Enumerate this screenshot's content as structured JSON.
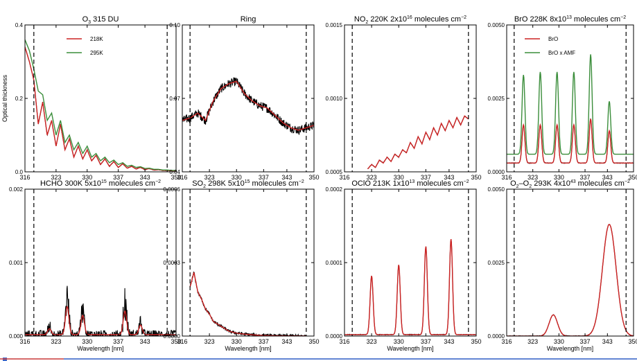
{
  "colors": {
    "obs": "#000000",
    "red": "#cc2222",
    "green": "#3a8d3a",
    "frame": "#000000"
  },
  "chart_data": [
    {
      "type": "line",
      "title_main": "O",
      "title_sub": "3",
      "title_rest": " 315 DU",
      "ylabel": "Optical thickness",
      "xlabel": "",
      "xlim": [
        316,
        350
      ],
      "ylim": [
        0,
        0.4
      ],
      "xticks": [
        "316",
        "323",
        "330",
        "337",
        "343",
        "350"
      ],
      "yticks": [
        {
          "v": 0.0,
          "t": "0.0"
        },
        {
          "v": 0.2,
          "t": "0.2"
        },
        {
          "v": 0.4,
          "t": "0.4"
        }
      ],
      "vlines": [
        318,
        348
      ],
      "legend": [
        "218K",
        "295K"
      ],
      "series": [
        {
          "name": "218K",
          "color": "red",
          "x": [
            316,
            317,
            318,
            319,
            320,
            321,
            322,
            323,
            324,
            325,
            326,
            327,
            328,
            329,
            330,
            331,
            332,
            333,
            334,
            335,
            336,
            337,
            338,
            339,
            340,
            341,
            342,
            343,
            344,
            345,
            346,
            347,
            348,
            349,
            350
          ],
          "y": [
            0.34,
            0.3,
            0.25,
            0.13,
            0.19,
            0.1,
            0.14,
            0.07,
            0.13,
            0.06,
            0.09,
            0.04,
            0.07,
            0.035,
            0.06,
            0.03,
            0.045,
            0.02,
            0.035,
            0.015,
            0.028,
            0.012,
            0.022,
            0.01,
            0.015,
            0.008,
            0.012,
            0.006,
            0.009,
            0.005,
            0.006,
            0.004,
            0.004,
            0.003,
            0.003
          ]
        },
        {
          "name": "295K",
          "color": "green",
          "x": [
            316,
            317,
            318,
            319,
            320,
            321,
            322,
            323,
            324,
            325,
            326,
            327,
            328,
            329,
            330,
            331,
            332,
            333,
            334,
            335,
            336,
            337,
            338,
            339,
            340,
            341,
            342,
            343,
            344,
            345,
            346,
            347,
            348,
            349,
            350
          ],
          "y": [
            0.36,
            0.33,
            0.28,
            0.22,
            0.21,
            0.14,
            0.16,
            0.1,
            0.14,
            0.08,
            0.1,
            0.06,
            0.08,
            0.05,
            0.07,
            0.04,
            0.05,
            0.03,
            0.04,
            0.025,
            0.032,
            0.02,
            0.025,
            0.015,
            0.018,
            0.012,
            0.014,
            0.009,
            0.01,
            0.007,
            0.007,
            0.005,
            0.005,
            0.004,
            0.004
          ]
        }
      ]
    },
    {
      "type": "line",
      "title_main": "Ring",
      "title_sub": "",
      "title_rest": "",
      "ylabel": "",
      "xlabel": "",
      "xlim": [
        316,
        350
      ],
      "ylim": [
        0.04,
        0.1
      ],
      "xticks": [
        "316",
        "323",
        "330",
        "337",
        "343",
        "350"
      ],
      "yticks": [
        {
          "v": 0.04,
          "t": "0.04"
        },
        {
          "v": 0.07,
          "t": "0.07"
        },
        {
          "v": 0.1,
          "t": "0.10"
        }
      ],
      "vlines": [
        318,
        348
      ],
      "legend": [],
      "series": [
        {
          "name": "",
          "color": "red",
          "x": [
            316,
            318,
            320,
            322,
            324,
            326,
            328,
            330,
            332,
            334,
            336,
            338,
            340,
            342,
            344,
            346,
            348,
            350
          ],
          "y": [
            0.061,
            0.062,
            0.064,
            0.061,
            0.069,
            0.074,
            0.076,
            0.077,
            0.072,
            0.069,
            0.067,
            0.066,
            0.063,
            0.06,
            0.058,
            0.057,
            0.058,
            0.059
          ]
        }
      ]
    },
    {
      "type": "line",
      "title_main": "NO",
      "title_sub": "2",
      "title_rest": " 220K  2x10",
      "title_sup": "16",
      "title_tail": " molecules cm",
      "title_tail_sup": "−2",
      "ylabel": "",
      "xlabel": "",
      "xlim": [
        316,
        350
      ],
      "ylim": [
        0.0005,
        0.0015
      ],
      "xticks": [
        "316",
        "323",
        "330",
        "337",
        "343",
        "350"
      ],
      "yticks": [
        {
          "v": 0.0005,
          "t": "0.0005"
        },
        {
          "v": 0.001,
          "t": "0.0010"
        },
        {
          "v": 0.0015,
          "t": "0.0015"
        }
      ],
      "vlines": [
        318,
        348
      ],
      "legend": [],
      "series": [
        {
          "name": "",
          "color": "red",
          "x": [
            322,
            323,
            324,
            325,
            326,
            327,
            328,
            329,
            330,
            331,
            332,
            333,
            334,
            335,
            336,
            337,
            338,
            339,
            340,
            341,
            342,
            343,
            344,
            345,
            346,
            347,
            348
          ],
          "y": [
            0.00052,
            0.00055,
            0.00053,
            0.00058,
            0.00056,
            0.0006,
            0.00057,
            0.00062,
            0.0006,
            0.00065,
            0.00063,
            0.0007,
            0.00066,
            0.00074,
            0.00069,
            0.00077,
            0.00072,
            0.0008,
            0.00075,
            0.00083,
            0.00078,
            0.00085,
            0.0008,
            0.00087,
            0.00082,
            0.00088,
            0.00086
          ]
        }
      ]
    },
    {
      "type": "line",
      "title_main": "BrO 228K 8x10",
      "title_sub": "",
      "title_rest": "",
      "title_sup": "13",
      "title_tail": " molecules cm",
      "title_tail_sup": "−2",
      "ylabel": "",
      "xlabel": "",
      "xlim": [
        316,
        350
      ],
      "ylim": [
        0,
        0.005
      ],
      "xticks": [
        "316",
        "323",
        "330",
        "337",
        "343",
        "350"
      ],
      "yticks": [
        {
          "v": 0,
          "t": "0.0000"
        },
        {
          "v": 0.0025,
          "t": "0.0025"
        },
        {
          "v": 0.005,
          "t": "0.0050"
        }
      ],
      "vlines": [
        318,
        348
      ],
      "legend": [
        "BrO",
        "BrO x AMF"
      ],
      "peaks": [
        320.5,
        325.0,
        329.5,
        334.0,
        338.5,
        343.5
      ],
      "series": [
        {
          "name": "BrO",
          "color": "red",
          "peak_heights": [
            0.0013,
            0.0013,
            0.0013,
            0.0013,
            0.0015,
            0.0011
          ],
          "base": 0.0003
        },
        {
          "name": "BrO x AMF",
          "color": "green",
          "peak_heights": [
            0.0027,
            0.0028,
            0.0028,
            0.0028,
            0.0034,
            0.0018
          ],
          "base": 0.0006
        }
      ]
    },
    {
      "type": "line",
      "title_main": "HCHO 300K 5x10",
      "title_sub": "",
      "title_rest": "",
      "title_sup": "15",
      "title_tail": " molecules cm",
      "title_tail_sup": "−2",
      "ylabel": "",
      "xlabel": "Wavelength [nm]",
      "xlim": [
        316,
        350
      ],
      "ylim": [
        0,
        0.002
      ],
      "xticks": [
        "316",
        "323",
        "330",
        "337",
        "343",
        "350"
      ],
      "yticks": [
        {
          "v": 0,
          "t": "0.000"
        },
        {
          "v": 0.001,
          "t": "0.001"
        },
        {
          "v": 0.002,
          "t": "0.002"
        }
      ],
      "vlines": [
        318,
        348
      ],
      "legend": [],
      "peaks": [
        321.5,
        325.5,
        329.0,
        338.5,
        342.0
      ],
      "series": [
        {
          "name": "",
          "color": "red",
          "peak_heights": [
            8e-05,
            0.00038,
            0.00026,
            0.00032,
            0.00013
          ],
          "base": 2e-05
        }
      ]
    },
    {
      "type": "line",
      "title_main": "SO",
      "title_sub": "2",
      "title_rest": " 298K 5x10",
      "title_sup": "15",
      "title_tail": " molecules cm",
      "title_tail_sup": "−2",
      "ylabel": "",
      "xlabel": "Wavelength [nm]",
      "xlim": [
        316,
        350
      ],
      "ylim": [
        0,
        0.0006
      ],
      "xticks": [
        "316",
        "323",
        "330",
        "337",
        "343",
        "350"
      ],
      "yticks": [
        {
          "v": 0,
          "t": "0.0000"
        },
        {
          "v": 0.0003,
          "t": "0.0003"
        },
        {
          "v": 0.0006,
          "t": "0.0006"
        }
      ],
      "vlines": [
        318,
        348
      ],
      "legend": [],
      "series": [
        {
          "name": "",
          "color": "red",
          "x": [
            318,
            319,
            320,
            321,
            322,
            323,
            324,
            325,
            326,
            327,
            328,
            330,
            332,
            334,
            336,
            338,
            340,
            344,
            348
          ],
          "y": [
            0.0002,
            0.00026,
            0.00018,
            0.00015,
            0.00011,
            9e-05,
            6e-05,
            5e-05,
            4e-05,
            3e-05,
            2e-05,
            1.2e-05,
            8e-06,
            5e-06,
            3e-06,
            2e-06,
            1e-06,
            5e-07,
            2e-07
          ]
        }
      ]
    },
    {
      "type": "line",
      "title_main": "OClO 213K 1x10",
      "title_sub": "",
      "title_rest": "",
      "title_sup": "13",
      "title_tail": " molecules cm",
      "title_tail_sup": "−2",
      "ylabel": "",
      "xlabel": "Wavelength [nm]",
      "xlim": [
        316,
        350
      ],
      "ylim": [
        0,
        0.0002
      ],
      "xticks": [
        "316",
        "323",
        "330",
        "337",
        "343",
        "350"
      ],
      "yticks": [
        {
          "v": 0,
          "t": "0.0000"
        },
        {
          "v": 0.0001,
          "t": "0.0001"
        },
        {
          "v": 0.0002,
          "t": "0.0002"
        }
      ],
      "vlines": [
        318,
        348
      ],
      "legend": [],
      "peaks": [
        323.0,
        330.0,
        337.0,
        343.5
      ],
      "series": [
        {
          "name": "",
          "color": "red",
          "peak_heights": [
            8e-05,
            9.5e-05,
            0.00012,
            0.00013
          ],
          "base": 2e-06
        }
      ]
    },
    {
      "type": "line",
      "title_main": "O",
      "title_sub": "2",
      "title_rest": "–O",
      "title_sub2": "2",
      "title_rest2": " 293K 4x10",
      "title_sup": "43",
      "title_tail": " molecules cm",
      "title_tail_sup": "−2",
      "ylabel": "",
      "xlabel": "Wavelength [nm]",
      "xlim": [
        316,
        350
      ],
      "ylim": [
        0,
        0.005
      ],
      "xticks": [
        "316",
        "323",
        "330",
        "337",
        "343",
        "350"
      ],
      "yticks": [
        {
          "v": 0,
          "t": "0.0000"
        },
        {
          "v": 0.0025,
          "t": "0.0025"
        },
        {
          "v": 0.005,
          "t": "0.0050"
        }
      ],
      "vlines": [
        318,
        348
      ],
      "legend": [],
      "peaks": [
        328.5,
        343.5
      ],
      "peak_widths": [
        1.6,
        2.6
      ],
      "series": [
        {
          "name": "",
          "color": "red",
          "peak_heights": [
            0.00072,
            0.0038
          ],
          "base": 0.0
        }
      ]
    }
  ]
}
